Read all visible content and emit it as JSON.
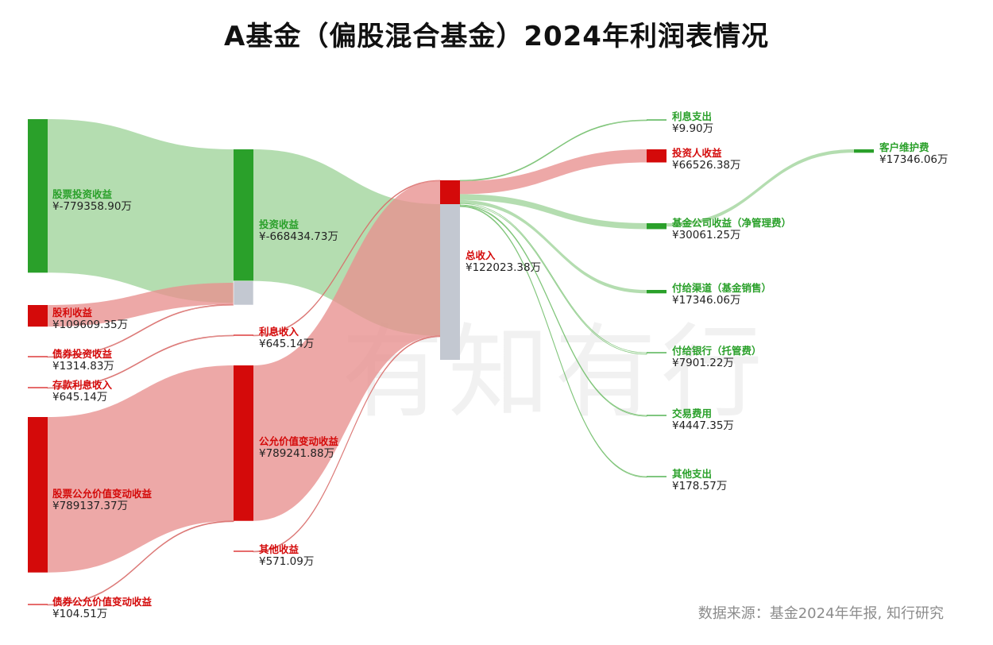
{
  "title": "A基金（偏股混合基金）2024年利润表情况",
  "source": "数据来源：基金2024年年报, 知行研究",
  "watermark": "有知有行",
  "colors": {
    "positive": "#d40a0a",
    "negative": "#2aa02a",
    "positive_link": "#e8908e",
    "negative_link": "#9fd49a",
    "neutral": "#c3c8d1"
  },
  "chart_data": {
    "type": "sankey",
    "unit": "万",
    "nodes": [
      {
        "id": "gpt",
        "label": "股票投资收益",
        "value_text": "¥-779358.90万",
        "value": -779358.9,
        "column": 0,
        "sign": "negative"
      },
      {
        "id": "gl",
        "label": "股利收益",
        "value_text": "¥109609.35万",
        "value": 109609.35,
        "column": 0,
        "sign": "positive"
      },
      {
        "id": "zqtz",
        "label": "债券投资收益",
        "value_text": "¥1314.83万",
        "value": 1314.83,
        "column": 0,
        "sign": "positive"
      },
      {
        "id": "ckll",
        "label": "存款利息收入",
        "value_text": "¥645.14万",
        "value": 645.14,
        "column": 0,
        "sign": "positive"
      },
      {
        "id": "gpgy",
        "label": "股票公允价值变动收益",
        "value_text": "¥789137.37万",
        "value": 789137.37,
        "column": 0,
        "sign": "positive"
      },
      {
        "id": "zqgy",
        "label": "债券公允价值变动收益",
        "value_text": "¥104.51万",
        "value": 104.51,
        "column": 0,
        "sign": "positive"
      },
      {
        "id": "tzsy",
        "label": "投资收益",
        "value_text": "¥-668434.73万",
        "value": -668434.73,
        "column": 1,
        "sign": "negative"
      },
      {
        "id": "lxsr",
        "label": "利息收入",
        "value_text": "¥645.14万",
        "value": 645.14,
        "column": 1,
        "sign": "positive"
      },
      {
        "id": "gyjz",
        "label": "公允价值变动收益",
        "value_text": "¥789241.88万",
        "value": 789241.88,
        "column": 1,
        "sign": "positive"
      },
      {
        "id": "qtsy",
        "label": "其他收益",
        "value_text": "¥571.09万",
        "value": 571.09,
        "column": 1,
        "sign": "positive"
      },
      {
        "id": "zsr",
        "label": "总收入",
        "value_text": "¥122023.38万",
        "value": 122023.38,
        "column": 2,
        "sign": "positive"
      },
      {
        "id": "lxzc",
        "label": "利息支出",
        "value_text": "¥9.90万",
        "value": 9.9,
        "column": 3,
        "sign": "negative"
      },
      {
        "id": "tzrsy",
        "label": "投资人收益",
        "value_text": "¥66526.38万",
        "value": 66526.38,
        "column": 3,
        "sign": "positive"
      },
      {
        "id": "jjgs",
        "label": "基金公司收益（净管理费）",
        "value_text": "¥30061.25万",
        "value": 30061.25,
        "column": 3,
        "sign": "negative"
      },
      {
        "id": "qdfy",
        "label": "付给渠道（基金销售）",
        "value_text": "¥17346.06万",
        "value": 17346.06,
        "column": 3,
        "sign": "negative"
      },
      {
        "id": "yhfy",
        "label": "付给银行（托管费）",
        "value_text": "¥7901.22万",
        "value": 7901.22,
        "column": 3,
        "sign": "negative"
      },
      {
        "id": "jyfy",
        "label": "交易费用",
        "value_text": "¥4447.35万",
        "value": 4447.35,
        "column": 3,
        "sign": "negative"
      },
      {
        "id": "qtzc",
        "label": "其他支出",
        "value_text": "¥178.57万",
        "value": 178.57,
        "column": 3,
        "sign": "negative"
      },
      {
        "id": "khwh",
        "label": "客户维护费",
        "value_text": "¥17346.06万",
        "value": 17346.06,
        "column": 4,
        "sign": "negative"
      }
    ],
    "links": [
      {
        "source": "gpt",
        "target": "tzsy",
        "value": 779358.9,
        "sign": "negative"
      },
      {
        "source": "gl",
        "target": "tzsy",
        "value": 109609.35,
        "sign": "positive"
      },
      {
        "source": "zqtz",
        "target": "tzsy",
        "value": 1314.83,
        "sign": "positive"
      },
      {
        "source": "ckll",
        "target": "lxsr",
        "value": 645.14,
        "sign": "positive"
      },
      {
        "source": "gpgy",
        "target": "gyjz",
        "value": 789137.37,
        "sign": "positive"
      },
      {
        "source": "zqgy",
        "target": "gyjz",
        "value": 104.51,
        "sign": "positive"
      },
      {
        "source": "tzsy",
        "target": "zsr",
        "value": 668434.73,
        "sign": "negative"
      },
      {
        "source": "lxsr",
        "target": "zsr",
        "value": 645.14,
        "sign": "positive"
      },
      {
        "source": "gyjz",
        "target": "zsr",
        "value": 789241.88,
        "sign": "positive"
      },
      {
        "source": "qtsy",
        "target": "zsr",
        "value": 571.09,
        "sign": "positive"
      },
      {
        "source": "zsr",
        "target": "lxzc",
        "value": 9.9,
        "sign": "negative"
      },
      {
        "source": "zsr",
        "target": "tzrsy",
        "value": 66526.38,
        "sign": "positive"
      },
      {
        "source": "zsr",
        "target": "jjgs",
        "value": 30061.25,
        "sign": "negative"
      },
      {
        "source": "zsr",
        "target": "qdfy",
        "value": 17346.06,
        "sign": "negative"
      },
      {
        "source": "zsr",
        "target": "yhfy",
        "value": 7901.22,
        "sign": "negative"
      },
      {
        "source": "zsr",
        "target": "jyfy",
        "value": 4447.35,
        "sign": "negative"
      },
      {
        "source": "zsr",
        "target": "qtzc",
        "value": 178.57,
        "sign": "negative"
      },
      {
        "source": "jjgs",
        "target": "khwh",
        "value": 17346.06,
        "sign": "negative"
      }
    ]
  }
}
